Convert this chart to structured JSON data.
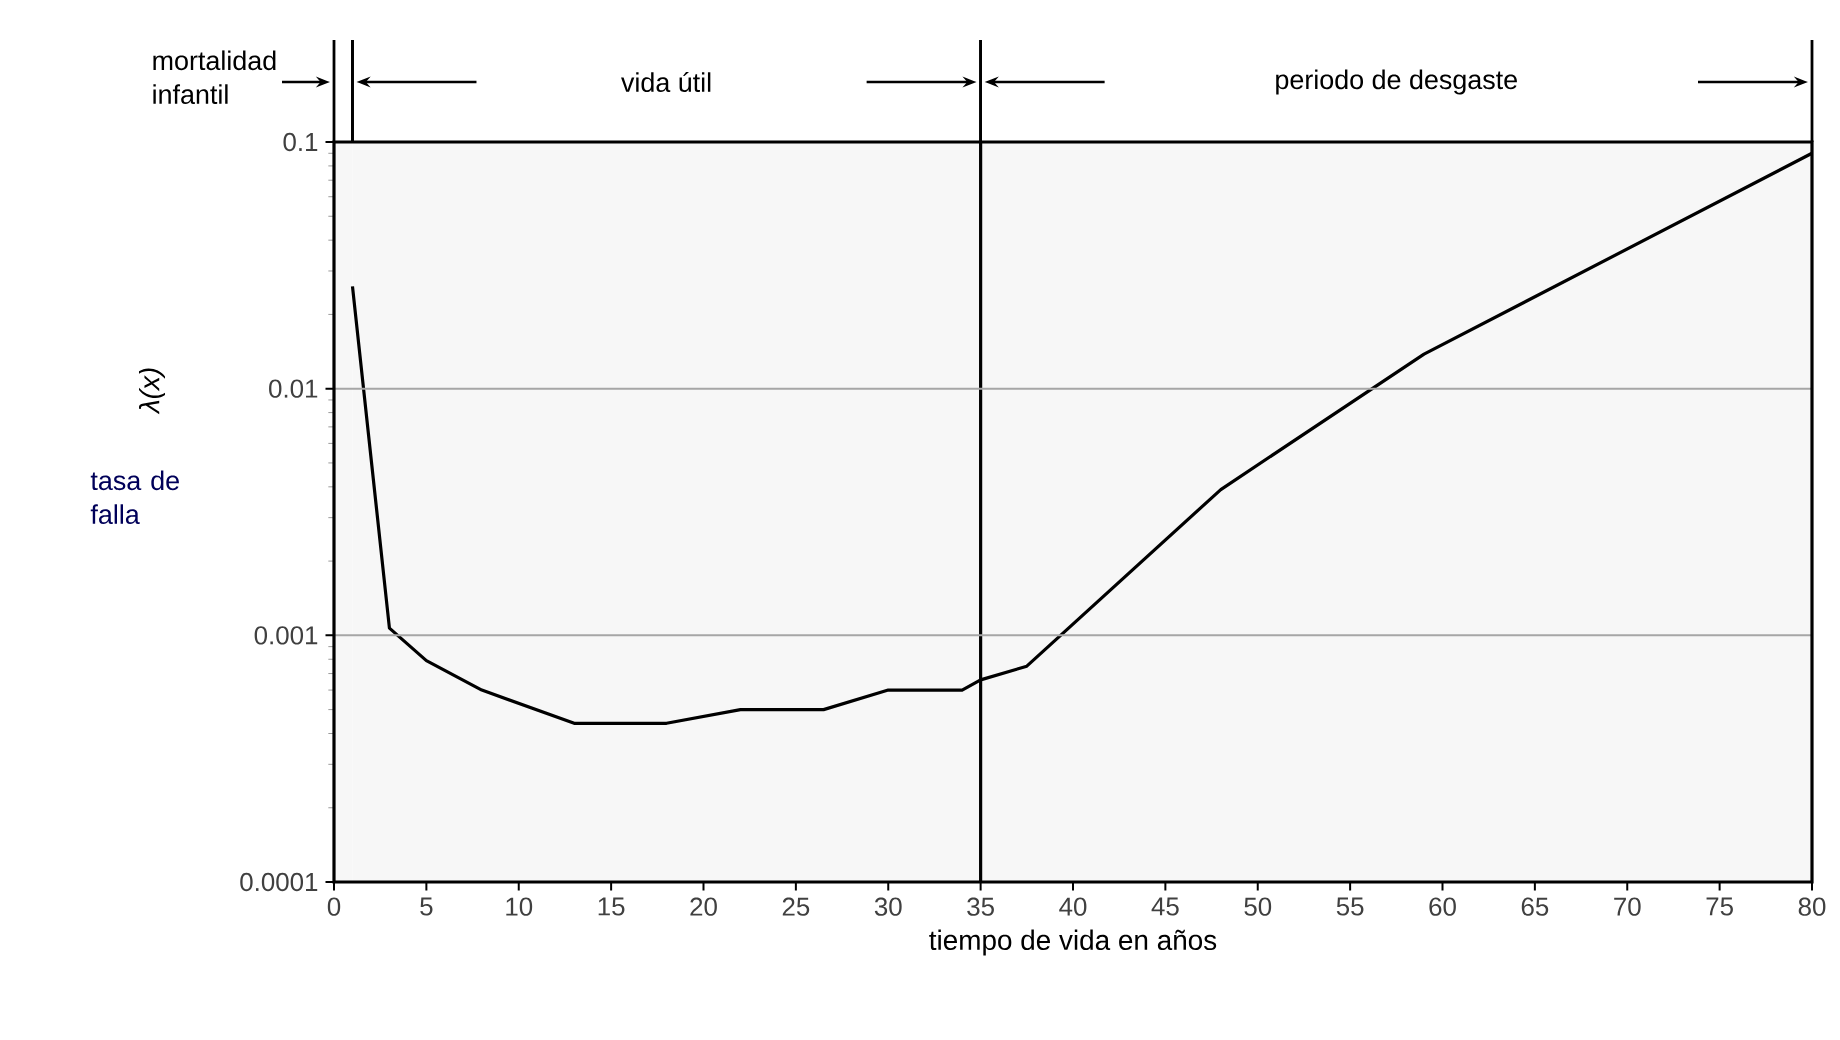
{
  "chart_data": {
    "type": "line",
    "xlabel": "tiempo de vida en años",
    "ylabel": "λ(x)",
    "annotations": [
      "tasa de falla"
    ],
    "x": [
      1,
      3,
      5,
      8,
      13,
      18,
      22,
      26.5,
      30,
      34,
      35,
      37.5,
      48,
      59,
      80
    ],
    "series": [
      {
        "color": "#000000",
        "values": [
          0.026,
          0.00107,
          0.00079,
          0.0006,
          0.00044,
          0.00044,
          0.0005,
          0.0005,
          0.0006,
          0.0006,
          0.00066,
          0.00075,
          0.0039,
          0.0138,
          0.09
        ]
      }
    ],
    "log": "y",
    "xlim": [
      0,
      80
    ],
    "ylim": [
      0.0001,
      0.1
    ],
    "xticks": [
      0,
      5,
      10,
      15,
      20,
      25,
      30,
      35,
      40,
      45,
      50,
      55,
      60,
      65,
      70,
      75,
      80
    ],
    "yticks": [
      0.0001,
      0.001,
      0.01,
      0.1
    ],
    "grid": "y",
    "ref_lines": [
      {
        "axis": "x",
        "value": 35
      }
    ],
    "bands": [
      {
        "axis": "x",
        "from": 0,
        "to": 1,
        "label": "mortalidad infantil",
        "color": "#f7f7f7"
      },
      {
        "axis": "x",
        "from": 1,
        "to": 35,
        "label": "vida útil",
        "color": "#f7f7f7"
      },
      {
        "axis": "x",
        "from": 35,
        "to": 80,
        "label": "periodo de desgaste",
        "color": "#f7f7f7"
      }
    ]
  }
}
